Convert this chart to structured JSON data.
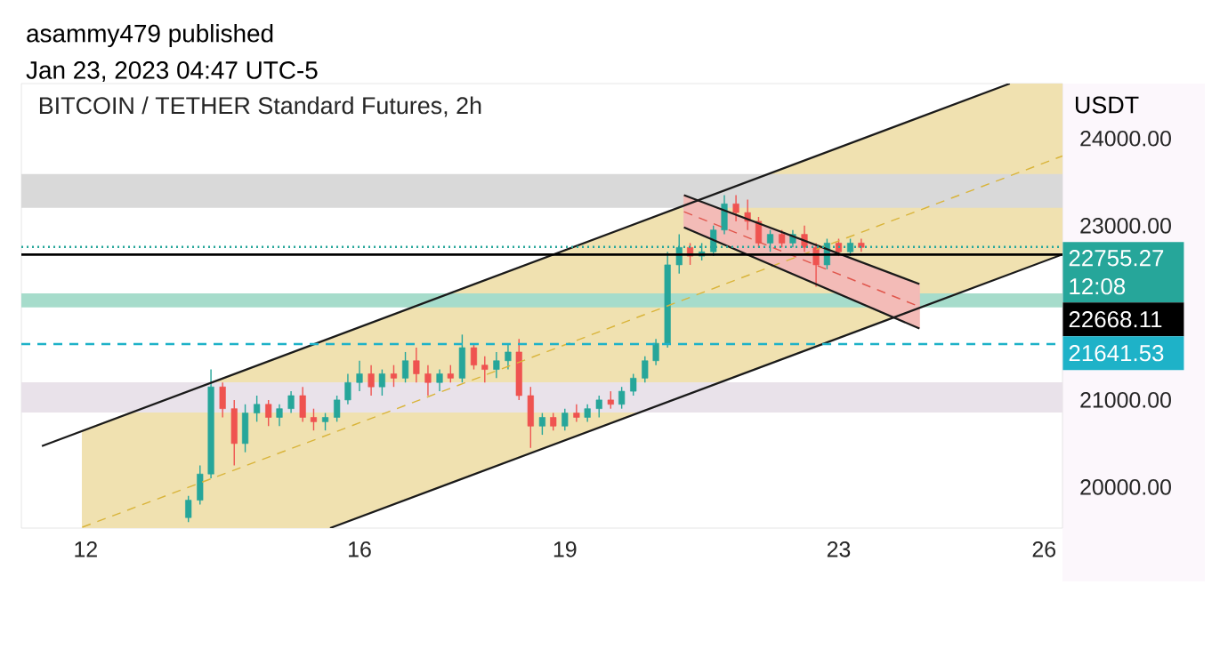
{
  "chart_data": {
    "type": "candlestick",
    "title": "BITCOIN / TETHER Standard Futures, 2h",
    "subtitle": "asammy479 published",
    "annotations": [
      "12:08",
      "Jan 23, 2023 04:47 UTC-5"
    ],
    "ylabel": "USDT",
    "xlim": [
      11.06,
      26.27
    ],
    "ylim": [
      19530,
      24630
    ],
    "xticks": [
      12,
      16,
      19,
      23,
      26
    ],
    "yticks": [
      {
        "value": 20000,
        "label": "20000.00"
      },
      {
        "value": 21000,
        "label": "21000.00"
      },
      {
        "value": 23000,
        "label": "23000.00"
      },
      {
        "value": 24000,
        "label": "24000.00"
      }
    ],
    "colors": [
      "#26a69a",
      "#26a69a",
      "#26a69a",
      "#ef5350",
      "#ef5350",
      "#26a69a",
      "#26a69a",
      "#ef5350",
      "#26a69a",
      "#26a69a",
      "#ef5350",
      "#ef5350",
      "#26a69a",
      "#26a69a",
      "#26a69a",
      "#26a69a",
      "#ef5350",
      "#26a69a",
      "#ef5350",
      "#26a69a",
      "#ef5350",
      "#ef5350",
      "#26a69a",
      "#ef5350",
      "#26a69a",
      "#ef5350",
      "#ef5350",
      "#26a69a",
      "#26a69a",
      "#ef5350",
      "#ef5350",
      "#26a69a",
      "#ef5350",
      "#26a69a",
      "#ef5350",
      "#26a69a",
      "#26a69a",
      "#ef5350",
      "#26a69a",
      "#26a69a",
      "#26a69a",
      "#26a69a",
      "#26a69a",
      "#26a69a",
      "#ef5350",
      "#26a69a",
      "#26a69a",
      "#26a69a",
      "#ef5350",
      "#ef5350",
      "#ef5350",
      "#26a69a",
      "#ef5350",
      "#26a69a",
      "#ef5350",
      "#ef5350",
      "#26a69a",
      "#ef5350",
      "#26a69a",
      "#ef5350"
    ],
    "x": [
      13.5,
      13.67,
      13.83,
      14,
      14.17,
      14.33,
      14.5,
      14.67,
      14.83,
      15,
      15.17,
      15.33,
      15.5,
      15.67,
      15.83,
      16,
      16.17,
      16.33,
      16.5,
      16.67,
      16.83,
      17,
      17.17,
      17.33,
      17.5,
      17.67,
      17.83,
      18,
      18.17,
      18.33,
      18.5,
      18.67,
      18.83,
      19,
      19.17,
      19.33,
      19.5,
      19.67,
      19.83,
      20,
      20.17,
      20.33,
      20.5,
      20.67,
      20.83,
      21,
      21.17,
      21.33,
      21.5,
      21.67,
      21.83,
      22,
      22.17,
      22.33,
      22.5,
      22.67,
      22.83,
      23,
      23.17,
      23.33
    ],
    "ohlc": [
      [
        19650,
        19900,
        19600,
        19850
      ],
      [
        19850,
        20250,
        19800,
        20150
      ],
      [
        20150,
        21350,
        20100,
        21150
      ],
      [
        21150,
        21200,
        20800,
        20900
      ],
      [
        20900,
        21000,
        20250,
        20500
      ],
      [
        20500,
        20950,
        20400,
        20850
      ],
      [
        20850,
        21050,
        20750,
        20950
      ],
      [
        20950,
        21000,
        20700,
        20800
      ],
      [
        20800,
        20950,
        20700,
        20900
      ],
      [
        20900,
        21100,
        20850,
        21050
      ],
      [
        21050,
        21150,
        20750,
        20800
      ],
      [
        20800,
        20900,
        20650,
        20750
      ],
      [
        20750,
        20850,
        20650,
        20800
      ],
      [
        20800,
        21050,
        20750,
        21000
      ],
      [
        21000,
        21300,
        20950,
        21200
      ],
      [
        21200,
        21450,
        21100,
        21300
      ],
      [
        21300,
        21400,
        21050,
        21150
      ],
      [
        21150,
        21350,
        21050,
        21300
      ],
      [
        21300,
        21400,
        21150,
        21250
      ],
      [
        21250,
        21550,
        21200,
        21450
      ],
      [
        21450,
        21600,
        21200,
        21300
      ],
      [
        21300,
        21400,
        21050,
        21200
      ],
      [
        21200,
        21350,
        21100,
        21300
      ],
      [
        21300,
        21400,
        21200,
        21250
      ],
      [
        21250,
        21750,
        21200,
        21600
      ],
      [
        21600,
        21650,
        21350,
        21400
      ],
      [
        21400,
        21500,
        21200,
        21350
      ],
      [
        21350,
        21550,
        21250,
        21450
      ],
      [
        21450,
        21650,
        21350,
        21550
      ],
      [
        21550,
        21700,
        21000,
        21050
      ],
      [
        21050,
        21150,
        20450,
        20700
      ],
      [
        20700,
        20850,
        20600,
        20800
      ],
      [
        20800,
        20850,
        20650,
        20700
      ],
      [
        20700,
        20900,
        20650,
        20850
      ],
      [
        20850,
        20950,
        20750,
        20800
      ],
      [
        20800,
        20950,
        20750,
        20900
      ],
      [
        20900,
        21050,
        20800,
        21000
      ],
      [
        21000,
        21100,
        20900,
        20950
      ],
      [
        20950,
        21150,
        20900,
        21100
      ],
      [
        21100,
        21300,
        21050,
        21250
      ],
      [
        21250,
        21500,
        21200,
        21450
      ],
      [
        21450,
        21700,
        21400,
        21650
      ],
      [
        21650,
        22700,
        21600,
        22550
      ],
      [
        22550,
        22900,
        22450,
        22750
      ],
      [
        22750,
        22800,
        22550,
        22650
      ],
      [
        22650,
        22800,
        22600,
        22700
      ],
      [
        22700,
        23000,
        22650,
        22950
      ],
      [
        22950,
        23350,
        22900,
        23250
      ],
      [
        23250,
        23350,
        23050,
        23150
      ],
      [
        23150,
        23300,
        22950,
        23050
      ],
      [
        23050,
        23100,
        22750,
        22800
      ],
      [
        22800,
        22950,
        22700,
        22900
      ],
      [
        22900,
        22950,
        22750,
        22800
      ],
      [
        22800,
        22950,
        22750,
        22900
      ],
      [
        22900,
        23000,
        22700,
        22750
      ],
      [
        22750,
        22800,
        22300,
        22550
      ],
      [
        22550,
        22850,
        22500,
        22800
      ],
      [
        22800,
        22850,
        22650,
        22700
      ],
      [
        22700,
        22850,
        22650,
        22800
      ],
      [
        22800,
        22850,
        22700,
        22750
      ]
    ],
    "series": [
      {
        "type": "line",
        "line_style": "dashed",
        "color": "#d9b43a",
        "x": [
          11.95,
          15.57,
          25.5,
          26.27
        ],
        "values": [
          19540,
          20610,
          23570,
          23800
        ],
        "lower": [
          19530,
          19530,
          22450,
          22670
        ],
        "upper": [
          20650,
          21710,
          24630,
          24630
        ]
      },
      {
        "type": "line",
        "line_style": "dashed",
        "color": "#e0564c",
        "x": [
          20.74,
          24.18
        ],
        "values": [
          23160,
          22070
        ],
        "lower": [
          22980,
          21820
        ],
        "upper": [
          23350,
          22330
        ]
      },
      {
        "type": "line",
        "line_style": "solid",
        "color": "#1a1a1a",
        "x": [
          11.36,
          25.5
        ],
        "values": [
          20470,
          24630
        ]
      },
      {
        "type": "line",
        "line_style": "solid",
        "color": "#1a1a1a",
        "x": [
          15.57,
          26.27
        ],
        "values": [
          19530,
          22670
        ]
      },
      {
        "type": "line",
        "line_style": "solid",
        "color": "#1a1a1a",
        "x": [
          20.74,
          24.18
        ],
        "values": [
          23350,
          22330
        ]
      },
      {
        "type": "line",
        "line_style": "solid",
        "color": "#1a1a1a",
        "x": [
          20.74,
          24.18
        ],
        "values": [
          22980,
          21820
        ]
      }
    ],
    "bands": [
      {
        "axis": "y",
        "from": 23204,
        "to": 23592,
        "color": "#d9d9d9"
      },
      {
        "axis": "y",
        "from": 22061,
        "to": 22224,
        "color": "#a6dccb"
      },
      {
        "axis": "y",
        "from": 20857,
        "to": 21204,
        "color": "#e9e2ea"
      }
    ],
    "ref_lines": [
      {
        "axis": "y",
        "value": 22755.27,
        "label": "22755.27",
        "color": "#26a69a",
        "line_style": "dotted"
      },
      {
        "axis": "y",
        "value": 22668.11,
        "label": "22668.11",
        "color": "#000000",
        "line_style": "solid"
      },
      {
        "axis": "y",
        "value": 21641.53,
        "label": "21641.53",
        "color": "#1eb2c8",
        "line_style": "dashed"
      }
    ]
  }
}
